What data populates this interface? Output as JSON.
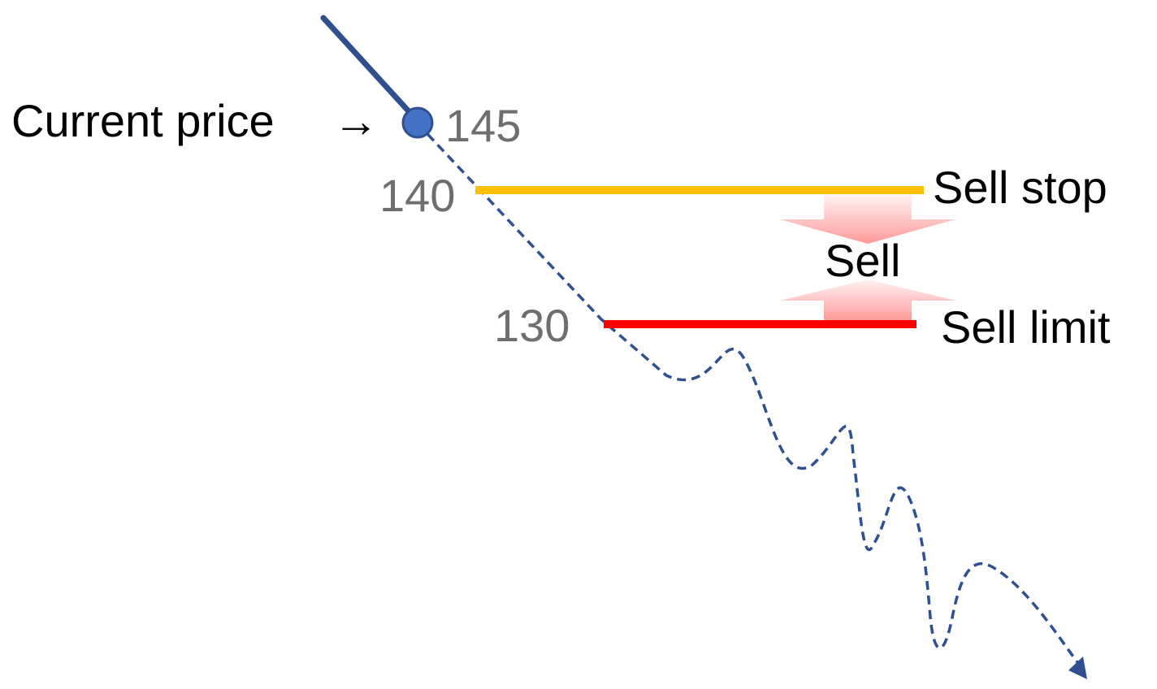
{
  "labels": {
    "current_price": "Current price",
    "arrow_glyph": "→",
    "sell_stop": "Sell stop",
    "sell": "Sell",
    "sell_limit": "Sell limit"
  },
  "prices": {
    "current": "145",
    "sell_stop": "140",
    "sell_limit": "130"
  },
  "colors": {
    "price_path": "#2f4f8f",
    "current_point": "#4472c4",
    "sell_stop_line": "#ffc000",
    "sell_limit_line": "#ff0000",
    "sell_arrow": "#ff9a9a",
    "price_text": "#6e6e6e"
  }
}
